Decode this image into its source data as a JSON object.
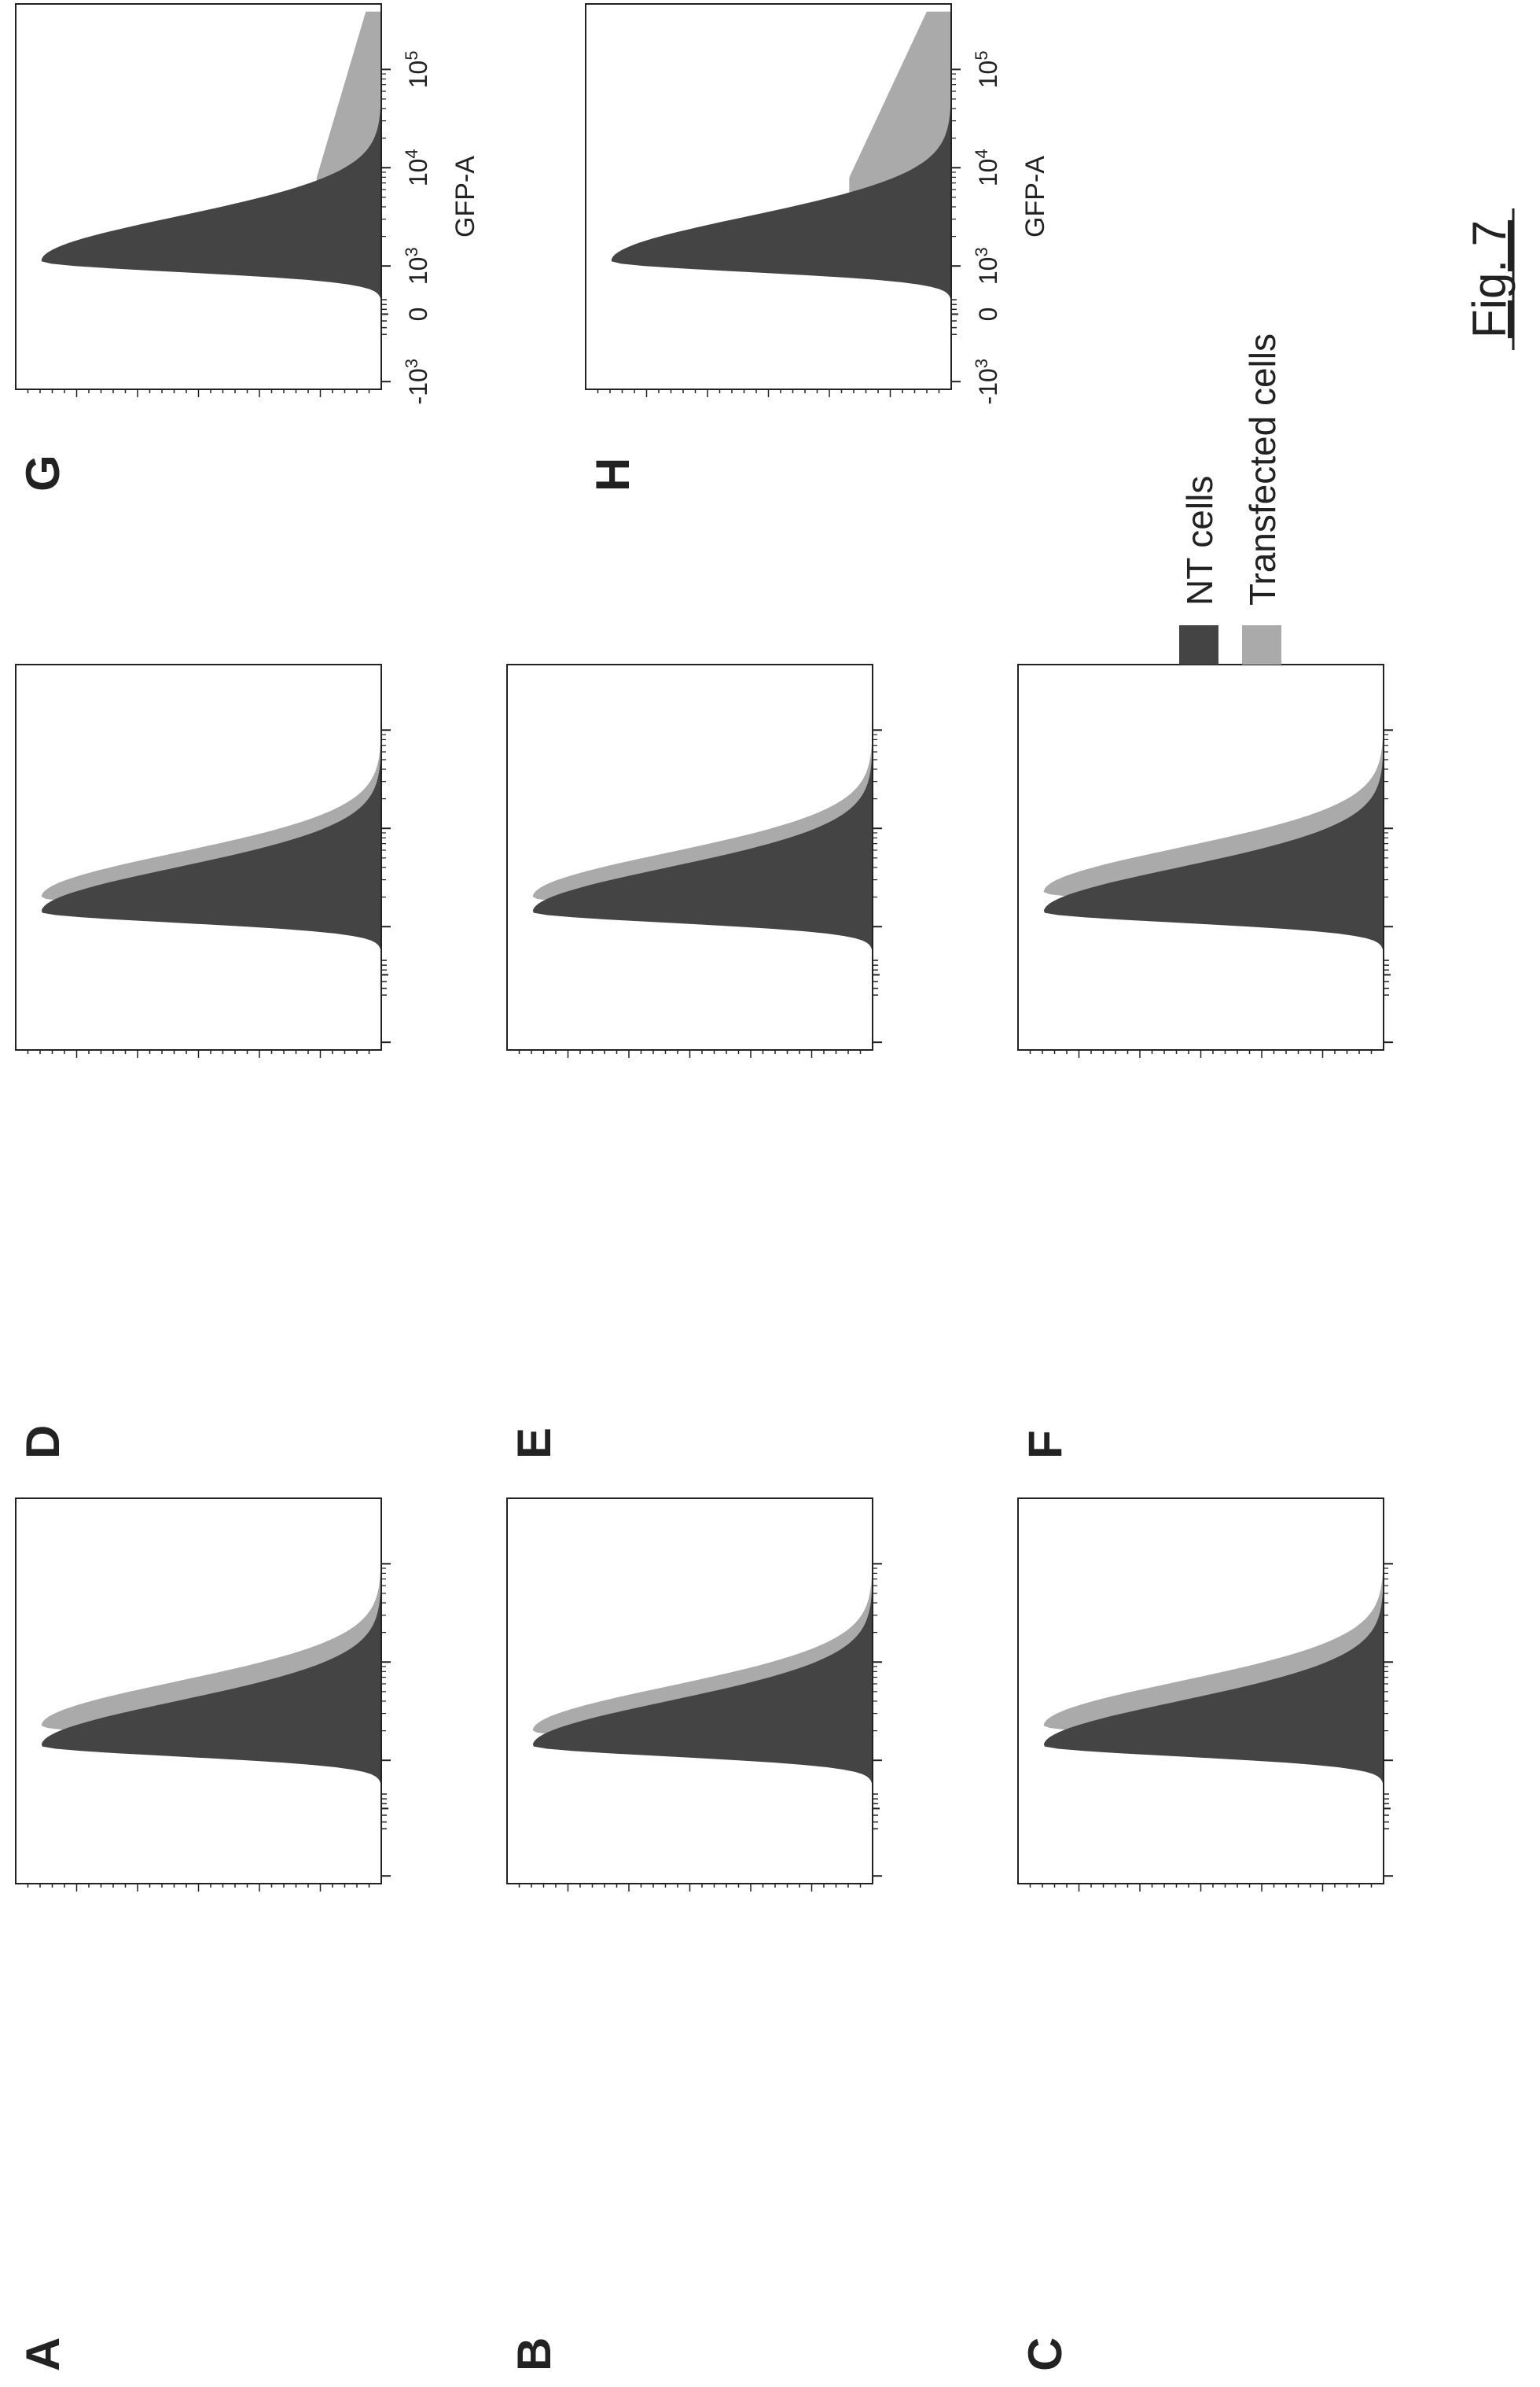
{
  "figure": {
    "caption": "Fig. 7",
    "legend": [
      {
        "label": "NT cells",
        "color": "#444444"
      },
      {
        "label": "Transfected cells",
        "color": "#aaaaaa"
      }
    ]
  },
  "chart_data": [
    {
      "type": "area",
      "panel": "A",
      "xlabel": "",
      "xscale": "biexponential",
      "xticks": [],
      "x_peak_log10": {
        "NT cells": 3.15,
        "Transfected cells": 3.35
      },
      "series": [
        {
          "name": "NT cells",
          "peak": 1.0
        },
        {
          "name": "Transfected cells",
          "peak": 1.0
        }
      ]
    },
    {
      "type": "area",
      "panel": "B",
      "xlabel": "",
      "xscale": "biexponential",
      "xticks": [],
      "x_peak_log10": {
        "NT cells": 3.15,
        "Transfected cells": 3.3
      },
      "series": [
        {
          "name": "NT cells",
          "peak": 1.0
        },
        {
          "name": "Transfected cells",
          "peak": 1.0
        }
      ]
    },
    {
      "type": "area",
      "panel": "C",
      "xlabel": "",
      "xscale": "biexponential",
      "xticks": [],
      "x_peak_log10": {
        "NT cells": 3.15,
        "Transfected cells": 3.35
      },
      "series": [
        {
          "name": "NT cells",
          "peak": 1.0
        },
        {
          "name": "Transfected cells",
          "peak": 1.0
        }
      ]
    },
    {
      "type": "area",
      "panel": "D",
      "xlabel": "",
      "xscale": "biexponential",
      "xticks": [],
      "x_peak_log10": {
        "NT cells": 3.15,
        "Transfected cells": 3.3
      },
      "series": [
        {
          "name": "NT cells",
          "peak": 1.0
        },
        {
          "name": "Transfected cells",
          "peak": 1.0
        }
      ]
    },
    {
      "type": "area",
      "panel": "E",
      "xlabel": "",
      "xscale": "biexponential",
      "xticks": [],
      "x_peak_log10": {
        "NT cells": 3.15,
        "Transfected cells": 3.3
      },
      "series": [
        {
          "name": "NT cells",
          "peak": 1.0
        },
        {
          "name": "Transfected cells",
          "peak": 1.0
        }
      ]
    },
    {
      "type": "area",
      "panel": "F",
      "xlabel": "",
      "xscale": "biexponential",
      "xticks": [],
      "x_peak_log10": {
        "NT cells": 3.15,
        "Transfected cells": 3.35
      },
      "series": [
        {
          "name": "NT cells",
          "peak": 1.0
        },
        {
          "name": "Transfected cells",
          "peak": 1.0
        }
      ]
    },
    {
      "type": "area",
      "panel": "G",
      "xlabel": "GFP-A",
      "xscale": "biexponential",
      "xticks": [
        {
          "label": "-10",
          "sup": "3",
          "value": -1000
        },
        {
          "label": "0",
          "sup": "",
          "value": 0
        },
        {
          "label": "10",
          "sup": "3",
          "value": 1000
        },
        {
          "label": "10",
          "sup": "4",
          "value": 10000
        },
        {
          "label": "10",
          "sup": "5",
          "value": 100000
        }
      ],
      "x_peak_log10": {
        "NT cells": 3.05,
        "Transfected cells": 3.05
      },
      "series": [
        {
          "name": "NT cells",
          "peak": 1.0
        },
        {
          "name": "Transfected cells",
          "peak": 0.6,
          "high_tail": 0.19
        }
      ]
    },
    {
      "type": "area",
      "panel": "H",
      "xlabel": "GFP-A",
      "xscale": "biexponential",
      "xticks": [
        {
          "label": "-10",
          "sup": "3",
          "value": -1000
        },
        {
          "label": "0",
          "sup": "",
          "value": 0
        },
        {
          "label": "10",
          "sup": "3",
          "value": 1000
        },
        {
          "label": "10",
          "sup": "4",
          "value": 10000
        },
        {
          "label": "10",
          "sup": "5",
          "value": 100000
        }
      ],
      "x_peak_log10": {
        "NT cells": 3.05,
        "Transfected cells": 3.05
      },
      "series": [
        {
          "name": "NT cells",
          "peak": 1.0
        },
        {
          "name": "Transfected cells",
          "peak": 0.6,
          "high_tail": 0.3
        }
      ]
    }
  ]
}
